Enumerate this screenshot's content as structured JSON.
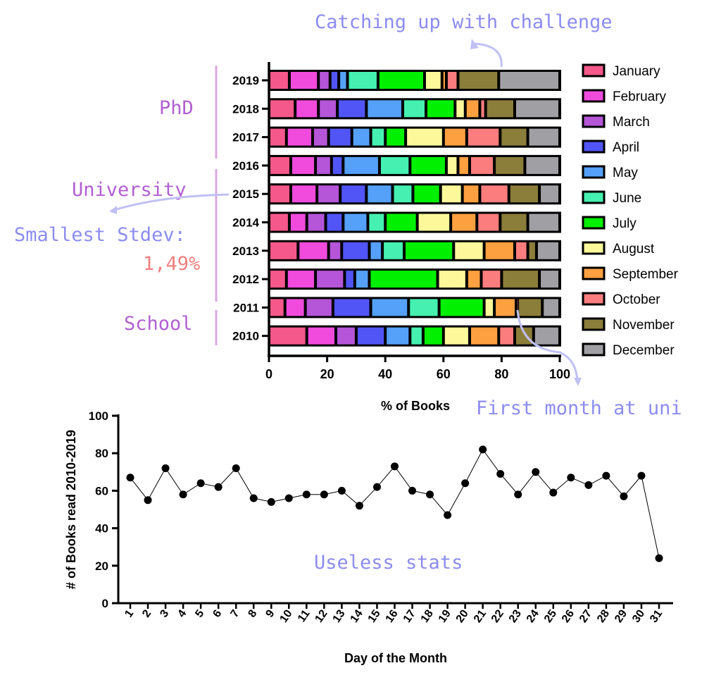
{
  "chart_data": [
    {
      "type": "bar",
      "orientation": "horizontal-stacked-100",
      "xlabel": "% of Books",
      "xlim": [
        0,
        100
      ],
      "xticks": [
        "0",
        "20",
        "40",
        "60",
        "80",
        "100"
      ],
      "categories": [
        "2019",
        "2018",
        "2017",
        "2016",
        "2015",
        "2014",
        "2013",
        "2012",
        "2011",
        "2010"
      ],
      "legend_position": "right",
      "series": [
        {
          "name": "January",
          "color": "#f5588a",
          "values": [
            7,
            9,
            6,
            7.5,
            7.5,
            7,
            10,
            6,
            5.5,
            13
          ]
        },
        {
          "name": "February",
          "color": "#f04bdc",
          "values": [
            10,
            8,
            9,
            8.5,
            9,
            6,
            10.5,
            10,
            7,
            10
          ]
        },
        {
          "name": "March",
          "color": "#b555d8",
          "values": [
            4,
            6.5,
            5.5,
            5.5,
            8,
            6.5,
            4.5,
            10,
            9.5,
            7
          ]
        },
        {
          "name": "April",
          "color": "#5155f5",
          "values": [
            3,
            10,
            8,
            4,
            9,
            6,
            9.5,
            3.5,
            13,
            10
          ]
        },
        {
          "name": "May",
          "color": "#55a0f8",
          "values": [
            3,
            12.5,
            6.5,
            12.5,
            9,
            8.5,
            4.5,
            5,
            13,
            8.5
          ]
        },
        {
          "name": "June",
          "color": "#45f0b0",
          "values": [
            10.5,
            8,
            5,
            10.5,
            7,
            6,
            7.5,
            0,
            10.5,
            4.5
          ]
        },
        {
          "name": "July",
          "color": "#00f000",
          "values": [
            16,
            10,
            7,
            12.5,
            9.5,
            11,
            17,
            23.5,
            15.5,
            7
          ]
        },
        {
          "name": "August",
          "color": "#fdf99a",
          "values": [
            6,
            3.5,
            13,
            4,
            7.5,
            11.5,
            10.5,
            10,
            3.5,
            9
          ]
        },
        {
          "name": "September",
          "color": "#fca040",
          "values": [
            1.5,
            5,
            8,
            4,
            6,
            9,
            10.5,
            5,
            7.5,
            10
          ]
        },
        {
          "name": "October",
          "color": "#fb7d7d",
          "values": [
            4,
            2,
            11.5,
            8.5,
            10,
            8,
            4.5,
            7,
            0.5,
            5.5
          ]
        },
        {
          "name": "November",
          "color": "#8b7d3a",
          "values": [
            14,
            10,
            9.5,
            10.5,
            10.5,
            9.5,
            3,
            13,
            8.5,
            6.5
          ]
        },
        {
          "name": "December",
          "color": "#a0a0a4",
          "values": [
            21,
            15.5,
            11,
            12,
            7,
            11,
            8,
            7,
            6,
            9
          ]
        }
      ]
    },
    {
      "type": "line",
      "xlabel": "Day of the Month",
      "ylabel": "# of Books read 2010-2019",
      "ylim": [
        0,
        100
      ],
      "yticks": [
        "0",
        "20",
        "40",
        "60",
        "80",
        "100"
      ],
      "x": [
        "1",
        "2",
        "3",
        "4",
        "5",
        "6",
        "7",
        "8",
        "9",
        "10",
        "11",
        "12",
        "13",
        "14",
        "15",
        "16",
        "17",
        "18",
        "19",
        "20",
        "21",
        "22",
        "23",
        "24",
        "25",
        "26",
        "27",
        "28",
        "29",
        "30",
        "31"
      ],
      "values": [
        67,
        55,
        72,
        58,
        64,
        62,
        72,
        56,
        54,
        56,
        58,
        58,
        60,
        52,
        62,
        73,
        60,
        58,
        47,
        64,
        82,
        69,
        58,
        70,
        59,
        67,
        63,
        68,
        57,
        68,
        24
      ],
      "color": "#000000"
    }
  ],
  "annotations": {
    "challenge": "Catching up with challenge",
    "phd": "PhD",
    "university": "University",
    "stdev_label": "Smallest Stdev:",
    "stdev_value": "1,49%",
    "school": "School",
    "first_month": "First month at uni",
    "useless": "Useless stats",
    "color_blue": "#8c8cf0",
    "color_purple": "#b25fd2",
    "color_salmon": "#f08080"
  }
}
